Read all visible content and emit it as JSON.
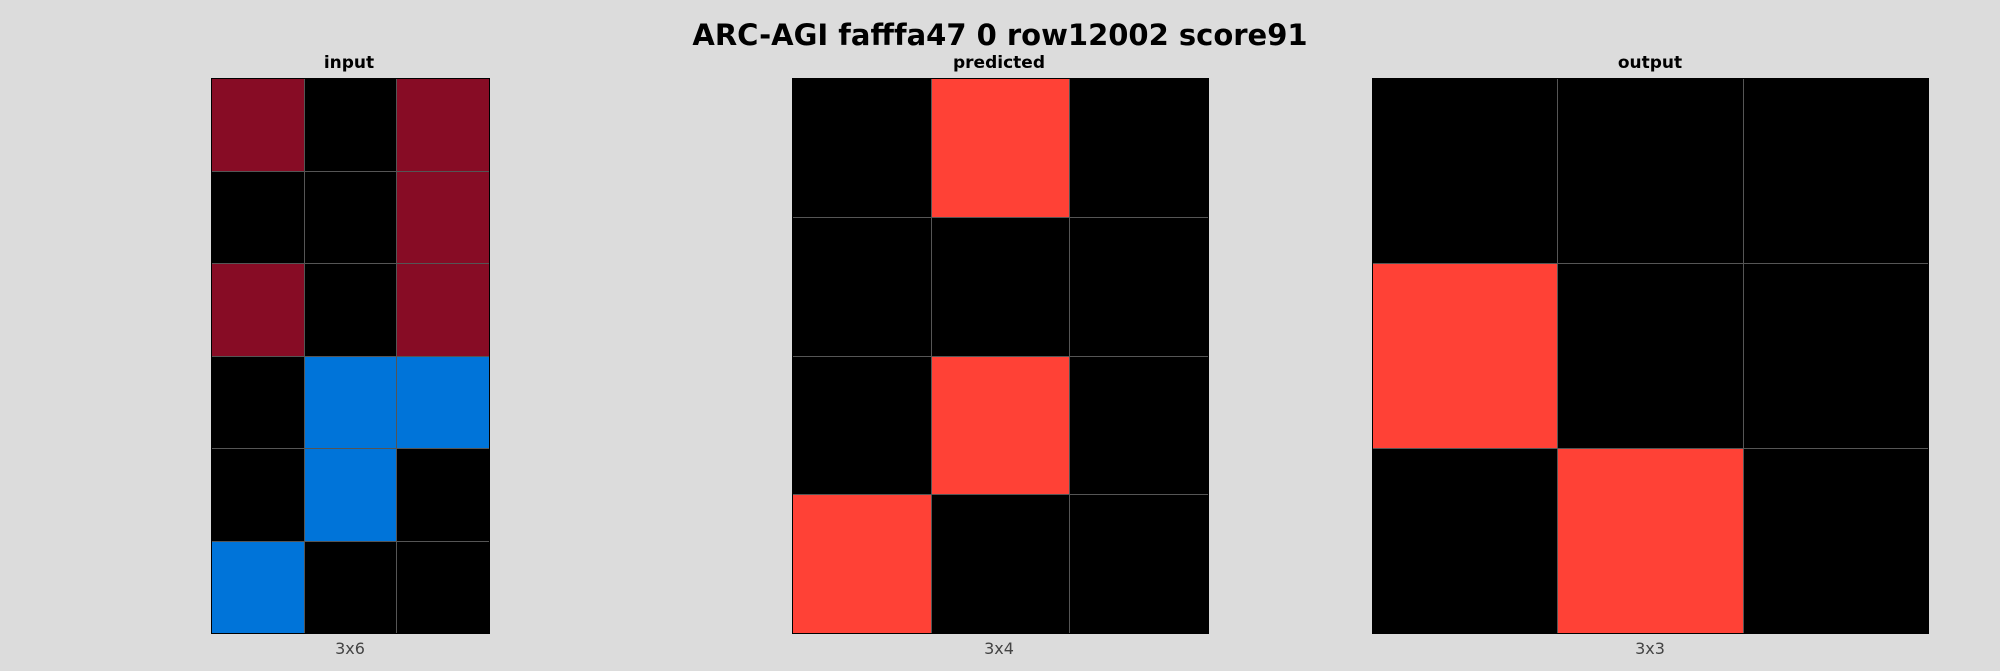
{
  "title": "ARC-AGI fafffa47 0 row12002 score91",
  "colors": {
    "0": "#000000",
    "1": "#0074D9",
    "2": "#FF4136",
    "9": "#870C25"
  },
  "panels": [
    {
      "label": "input",
      "dims": "3x6",
      "rows": [
        [
          9,
          0,
          9
        ],
        [
          0,
          0,
          9
        ],
        [
          9,
          0,
          9
        ],
        [
          0,
          1,
          1
        ],
        [
          0,
          1,
          0
        ],
        [
          1,
          0,
          0
        ]
      ]
    },
    {
      "label": "predicted",
      "dims": "3x4",
      "rows": [
        [
          0,
          2,
          0
        ],
        [
          0,
          0,
          0
        ],
        [
          0,
          2,
          0
        ],
        [
          2,
          0,
          0
        ]
      ]
    },
    {
      "label": "output",
      "dims": "3x3",
      "rows": [
        [
          0,
          0,
          0
        ],
        [
          2,
          0,
          0
        ],
        [
          0,
          2,
          0
        ]
      ]
    }
  ]
}
